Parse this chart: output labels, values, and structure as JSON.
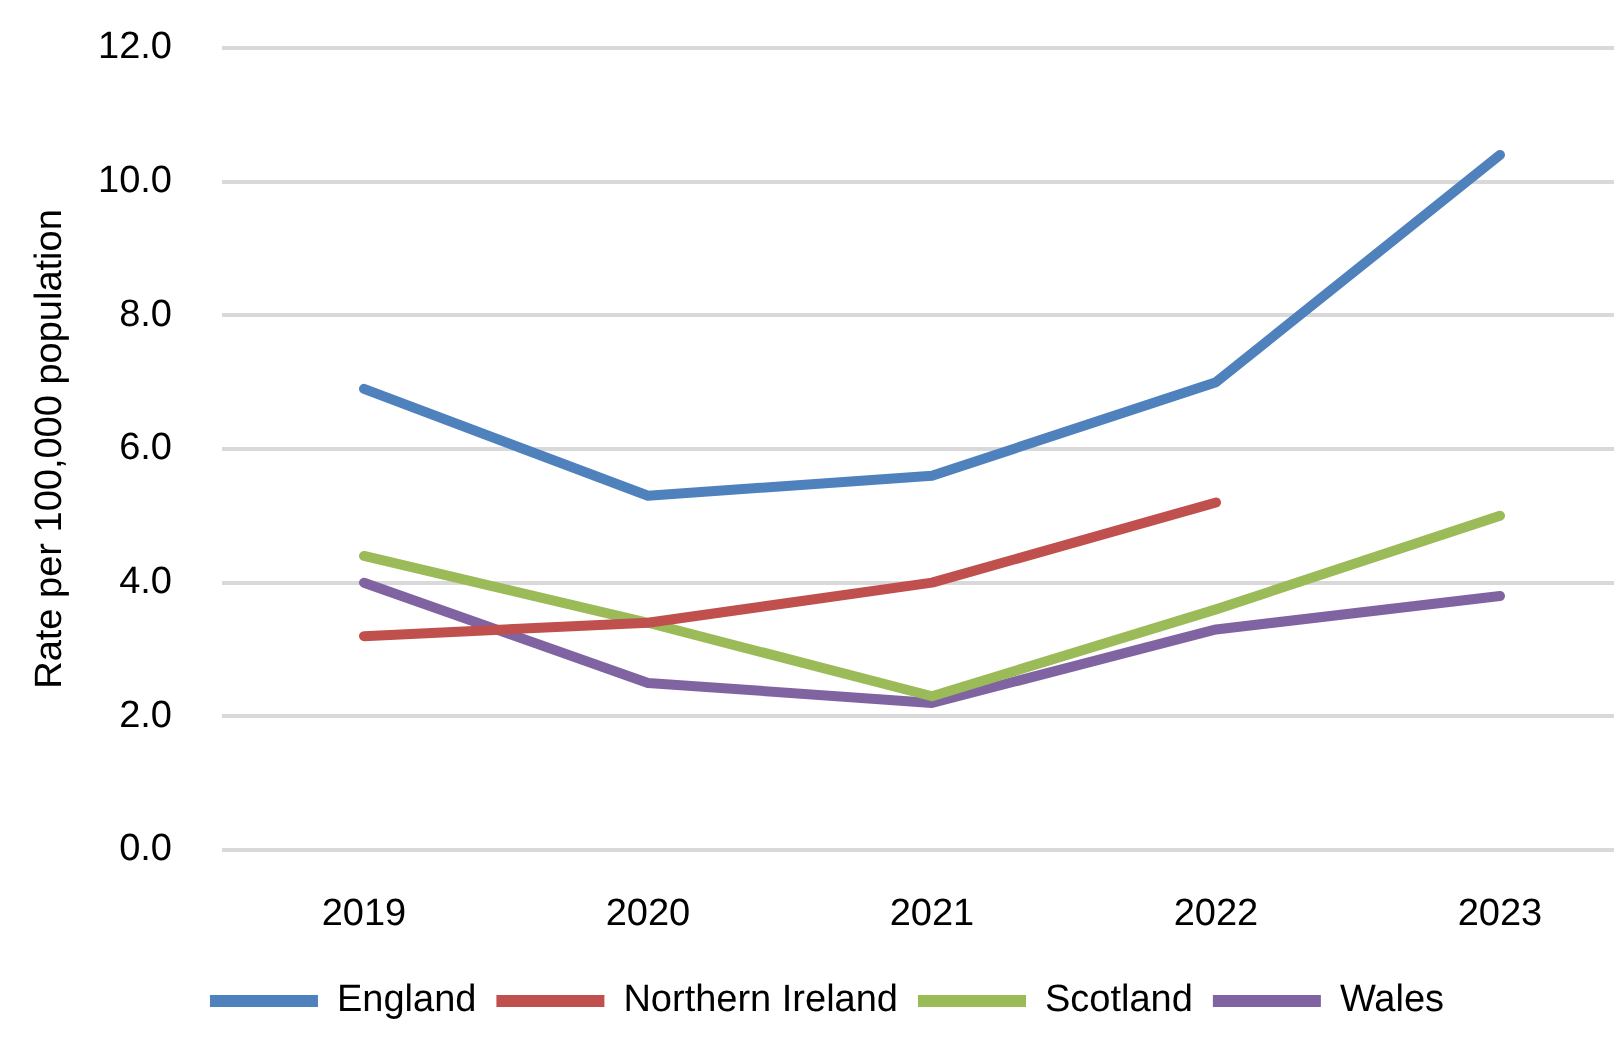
{
  "chart_data": {
    "type": "line",
    "ylabel": "Rate per 100,000 population",
    "categories": [
      "2019",
      "2020",
      "2021",
      "2022",
      "2023"
    ],
    "series": [
      {
        "name": "England",
        "color": "#4f81bd",
        "values": [
          6.9,
          5.3,
          5.6,
          7.0,
          10.4
        ]
      },
      {
        "name": "Northern Ireland",
        "color": "#c0504d",
        "values": [
          3.2,
          3.4,
          4.0,
          5.2,
          null
        ]
      },
      {
        "name": "Scotland",
        "color": "#9bbb59",
        "values": [
          4.4,
          3.4,
          2.3,
          3.6,
          5.0
        ]
      },
      {
        "name": "Wales",
        "color": "#8064a2",
        "values": [
          4.0,
          2.5,
          2.2,
          3.3,
          3.8
        ]
      }
    ],
    "ylim": [
      0,
      12
    ],
    "yticks": [
      {
        "value": 0,
        "label": "0.0"
      },
      {
        "value": 2,
        "label": "2.0"
      },
      {
        "value": 4,
        "label": "4.0"
      },
      {
        "value": 6,
        "label": "6.0"
      },
      {
        "value": 8,
        "label": "8.0"
      },
      {
        "value": 10,
        "label": "10.0"
      },
      {
        "value": 12,
        "label": "12.0"
      }
    ],
    "grid": "y",
    "legend": "bottom",
    "marker": "none",
    "line_style": "solid"
  }
}
